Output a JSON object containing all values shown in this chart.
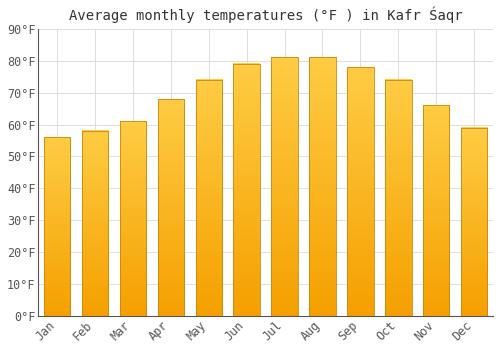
{
  "title": "Average monthly temperatures (°F ) in Kafr Śaqr",
  "months": [
    "Jan",
    "Feb",
    "Mar",
    "Apr",
    "May",
    "Jun",
    "Jul",
    "Aug",
    "Sep",
    "Oct",
    "Nov",
    "Dec"
  ],
  "values": [
    56,
    58,
    61,
    68,
    74,
    79,
    81,
    81,
    78,
    74,
    66,
    59
  ],
  "bar_color_top": "#FFC020",
  "bar_color_bottom": "#F5A800",
  "bar_edge_color": "#C8870A",
  "background_color": "#FFFFFF",
  "ylim": [
    0,
    90
  ],
  "yticks": [
    0,
    10,
    20,
    30,
    40,
    50,
    60,
    70,
    80,
    90
  ],
  "ytick_labels": [
    "0°F",
    "10°F",
    "20°F",
    "30°F",
    "40°F",
    "50°F",
    "60°F",
    "70°F",
    "80°F",
    "90°F"
  ],
  "title_fontsize": 10,
  "tick_fontsize": 8.5,
  "grid_color": "#dddddd",
  "font_family": "monospace"
}
